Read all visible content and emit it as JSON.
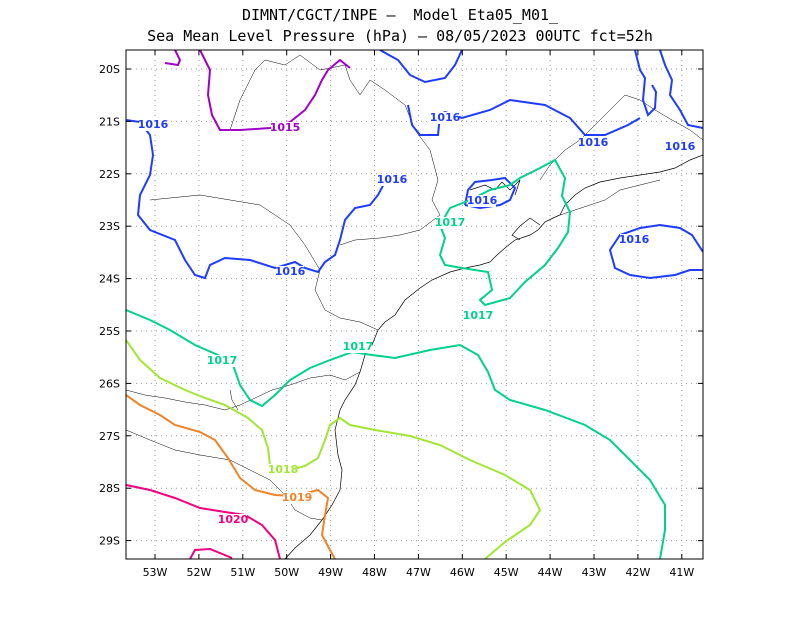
{
  "title_line1": "DIMNT/CGCT/INPE –  Model Eta05_M01_",
  "title_line2": "Sea Mean Level Pressure (hPa) – 08/05/2023 00UTC fct=52h",
  "map": {
    "lat_labels": [
      "20S",
      "21S",
      "22S",
      "23S",
      "24S",
      "25S",
      "26S",
      "27S",
      "28S",
      "29S"
    ],
    "lon_labels": [
      "53W",
      "52W",
      "51W",
      "50W",
      "49W",
      "48W",
      "47W",
      "46W",
      "45W",
      "44W",
      "43W",
      "42W",
      "41W"
    ],
    "grid": true,
    "contour_colors": {
      "1015": "#a000c8",
      "1016": "#1e3cff",
      "1017": "#00d28c",
      "1018": "#a0e632",
      "1019": "#f08228",
      "1020": "#f00082"
    },
    "contour_labels": [
      {
        "text": "1016",
        "level": "1016"
      },
      {
        "text": "1015",
        "level": "1015"
      },
      {
        "text": "1016",
        "level": "1016"
      },
      {
        "text": "1016",
        "level": "1016"
      },
      {
        "text": "1016",
        "level": "1016"
      },
      {
        "text": "1016",
        "level": "1016"
      },
      {
        "text": "1016",
        "level": "1016"
      },
      {
        "text": "1016",
        "level": "1016"
      },
      {
        "text": "1016",
        "level": "1016"
      },
      {
        "text": "1017",
        "level": "1017"
      },
      {
        "text": "1017",
        "level": "1017"
      },
      {
        "text": "1017",
        "level": "1017"
      },
      {
        "text": "1017",
        "level": "1017"
      },
      {
        "text": "1018",
        "level": "1018"
      },
      {
        "text": "1019",
        "level": "1019"
      },
      {
        "text": "1020",
        "level": "1020"
      }
    ]
  }
}
